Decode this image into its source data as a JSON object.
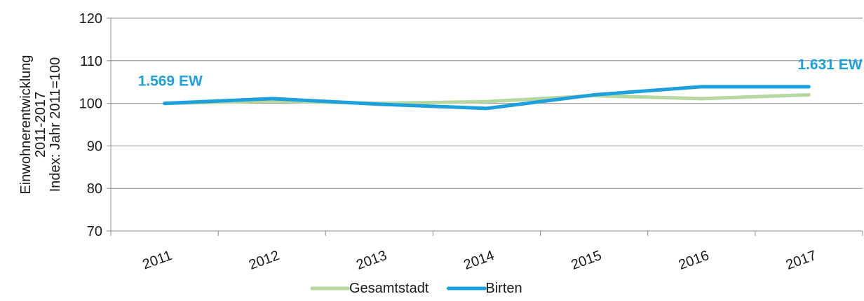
{
  "chart_data": {
    "type": "line",
    "categories": [
      "2011",
      "2012",
      "2013",
      "2014",
      "2015",
      "2016",
      "2017"
    ],
    "ylabel_lines": [
      "Einwohnerentwicklung",
      "2011-2017",
      "Index: Jahr 2011=100"
    ],
    "ylim": [
      70,
      120
    ],
    "yticks": [
      70,
      80,
      90,
      100,
      110,
      120
    ],
    "grid": "horizontal",
    "legend_position": "bottom",
    "series": [
      {
        "name": "Gesamtstadt",
        "color": "#b6d7a0",
        "values": [
          100,
          100.5,
          100,
          100.4,
          101.8,
          101.1,
          102
        ]
      },
      {
        "name": "Birten",
        "color": "#1ea0dc",
        "values": [
          100,
          101.1,
          99.8,
          98.8,
          102,
          103.9,
          103.9
        ]
      }
    ],
    "annotations": [
      {
        "text": "1.569 EW",
        "category": "2011",
        "color": "#1ea0dc"
      },
      {
        "text": "1.631 EW",
        "category": "2017",
        "color": "#1ea0dc"
      }
    ]
  }
}
